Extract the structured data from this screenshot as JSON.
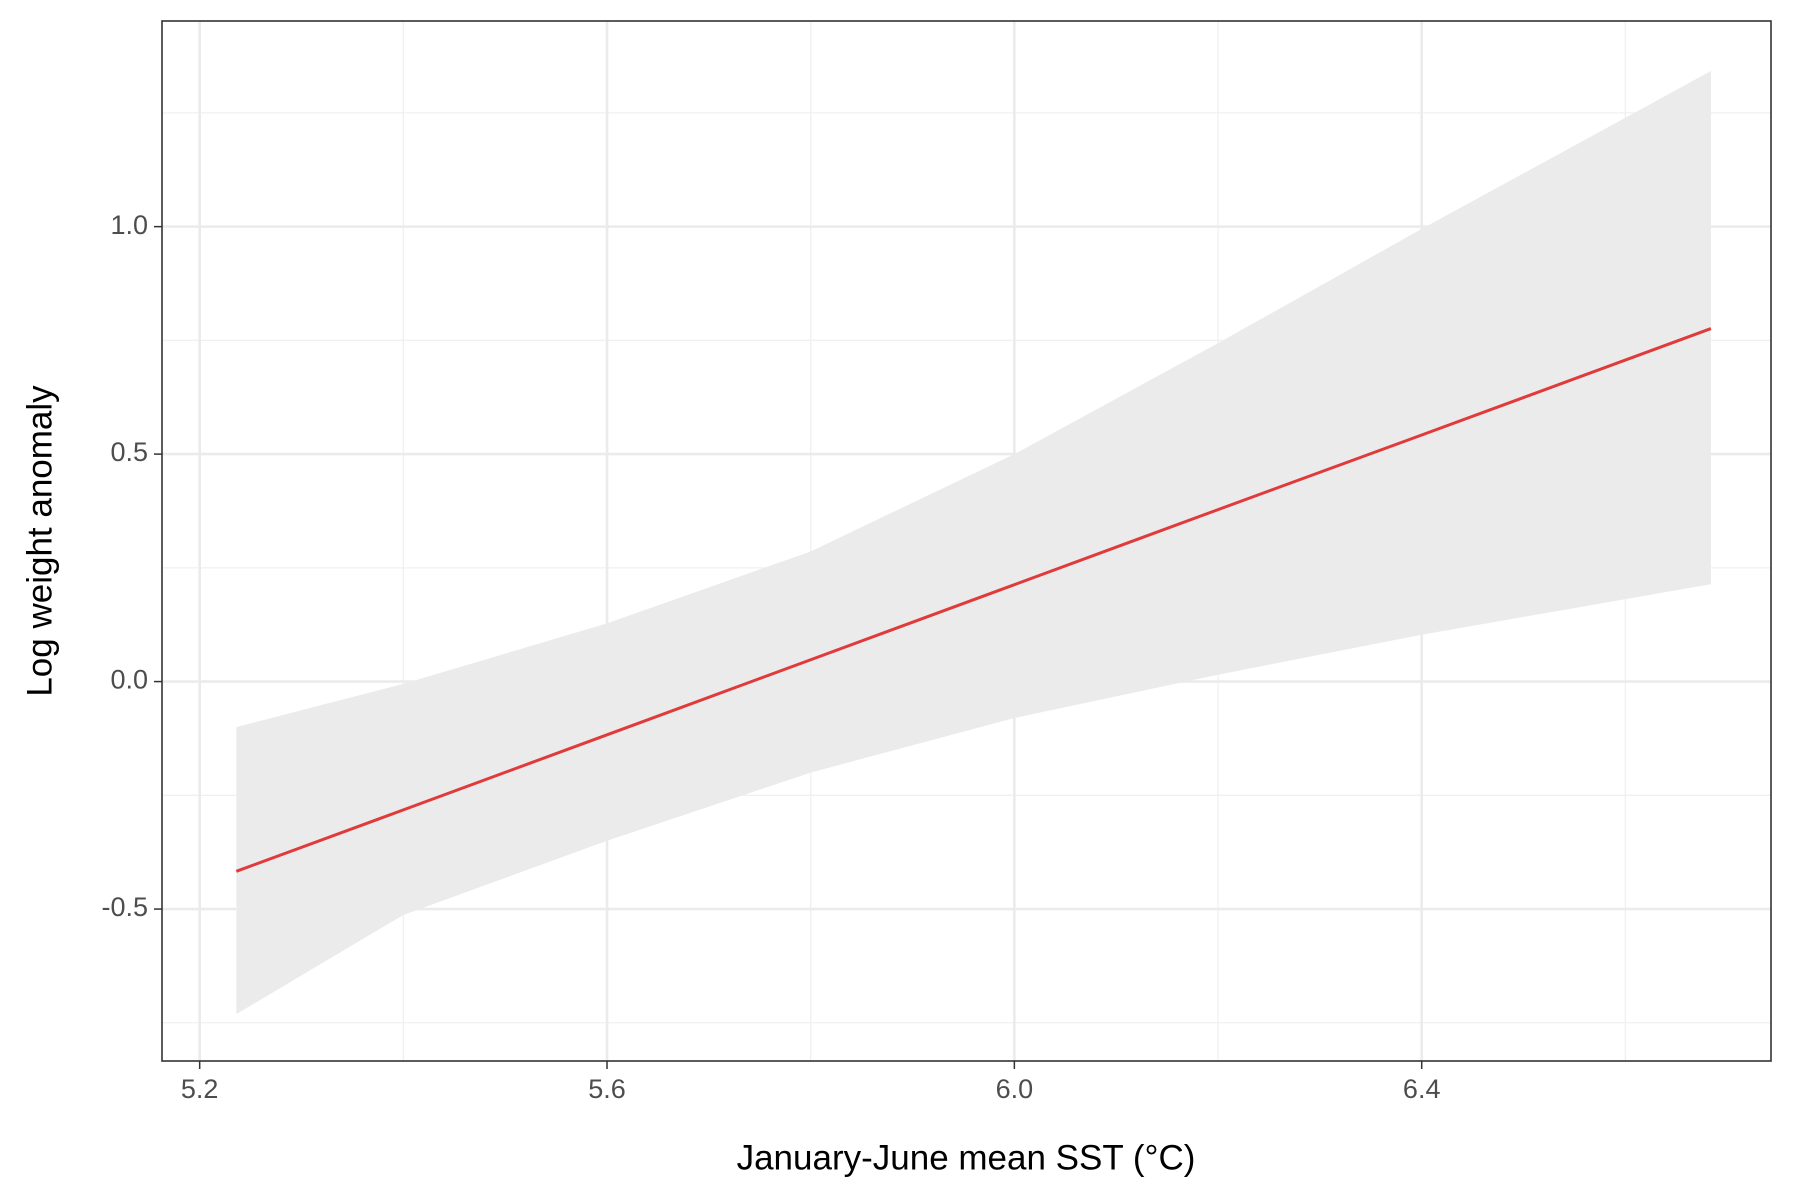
{
  "chart_data": {
    "type": "line",
    "x_label": "January-June mean SST (°C)",
    "y_label": "Log weight anomaly",
    "x": [
      5.236,
      5.4,
      5.6,
      5.8,
      6.0,
      6.2,
      6.4,
      6.684
    ],
    "values": [
      -0.417,
      -0.282,
      -0.117,
      0.048,
      0.213,
      0.378,
      0.542,
      0.776
    ],
    "lower": [
      -0.731,
      -0.513,
      -0.35,
      -0.2,
      -0.08,
      0.015,
      0.103,
      0.214
    ],
    "upper": [
      -0.1,
      -0.005,
      0.128,
      0.286,
      0.5,
      0.744,
      0.995,
      1.342
    ],
    "color": "#e03a3a",
    "band_color": "#ebebeb",
    "xlim": [
      5.163,
      6.743
    ],
    "ylim": [
      -0.834,
      1.452
    ],
    "xticks": [
      5.2,
      5.6,
      {
        "value": 6,
        "label": "6.0"
      },
      6.4
    ],
    "yticks": [
      -0.5,
      {
        "value": 0,
        "label": "0.0"
      },
      0.5,
      {
        "value": 1,
        "label": "1.0"
      }
    ],
    "xminor": [
      5.4,
      5.8,
      6.2,
      6.6
    ],
    "yminor": [
      -0.75,
      -0.25,
      0.25,
      0.75,
      1.25
    ],
    "grid": true
  }
}
